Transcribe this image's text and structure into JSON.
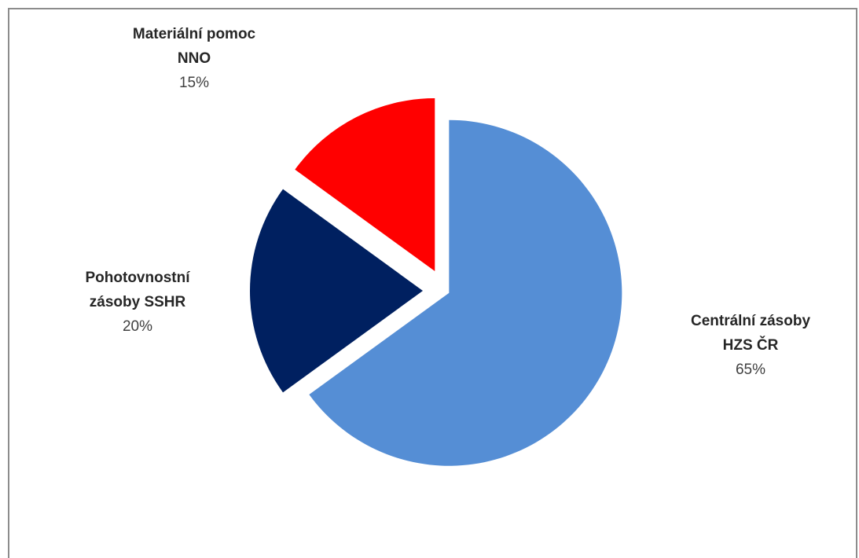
{
  "chart_data": {
    "type": "pie",
    "title": "",
    "exploded": true,
    "slices": [
      {
        "label_lines": [
          "Centrální zásoby",
          "HZS ČR"
        ],
        "value": 65,
        "value_label": "65%",
        "color": "#558ed5"
      },
      {
        "label_lines": [
          "Pohotovnostní",
          "zásoby SSHR"
        ],
        "value": 20,
        "value_label": "20%",
        "color": "#002060"
      },
      {
        "label_lines": [
          "Materiální pomoc",
          "NNO"
        ],
        "value": 15,
        "value_label": "15%",
        "color": "#ff0000"
      }
    ]
  }
}
